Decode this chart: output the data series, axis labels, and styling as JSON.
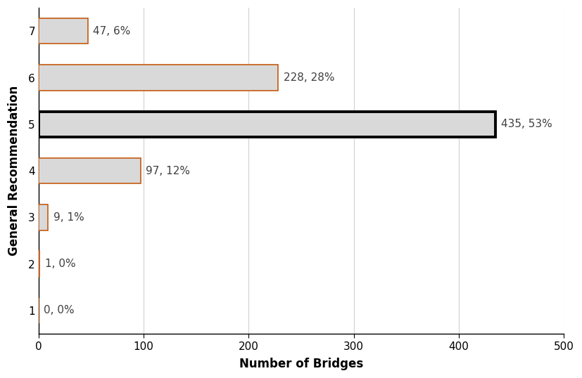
{
  "categories": [
    1,
    2,
    3,
    4,
    5,
    6,
    7
  ],
  "values": [
    0,
    1,
    9,
    97,
    435,
    228,
    47
  ],
  "labels": [
    "0, 0%",
    "1, 0%",
    "9, 1%",
    "97, 12%",
    "435, 53%",
    "228, 28%",
    "47, 6%"
  ],
  "bar_colors": [
    "#d9d9d9",
    "#c55a11",
    "#d9d9d9",
    "#d9d9d9",
    "#d9d9d9",
    "#d9d9d9",
    "#d9d9d9"
  ],
  "bar_edgecolors": [
    "#c55a11",
    "#c55a11",
    "#c55a11",
    "#c55a11",
    "#c55a11",
    "#c55a11",
    "#c55a11"
  ],
  "bar_linewidths": [
    1.2,
    1.2,
    1.2,
    1.2,
    1.2,
    1.2,
    1.2
  ],
  "bar5_extra_border": true,
  "xlabel": "Number of Bridges",
  "ylabel": "General Recommendation",
  "xlim": [
    0,
    500
  ],
  "xticks": [
    0,
    100,
    200,
    300,
    400,
    500
  ],
  "grid_color": "#d0d0d0",
  "background_color": "#ffffff",
  "label_fontsize": 11,
  "axis_label_fontsize": 12,
  "tick_fontsize": 11,
  "bar_height": 0.55
}
